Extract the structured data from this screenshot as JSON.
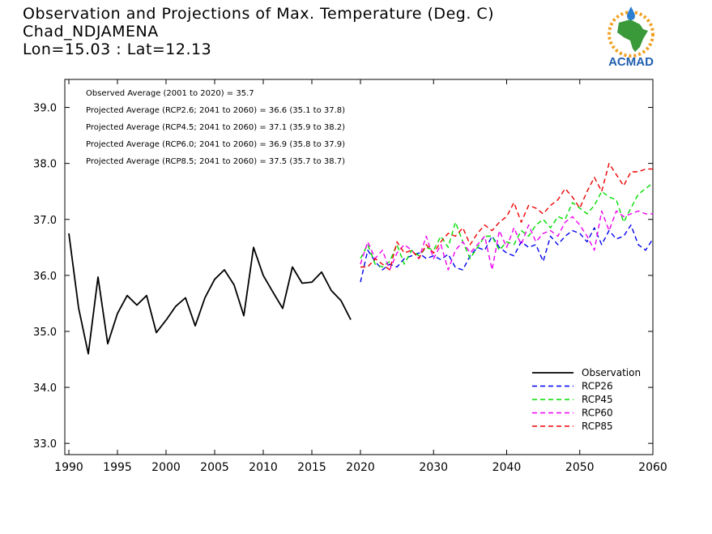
{
  "header": {
    "title_line1": "Observation and Projections of Max. Temperature (Deg. C)",
    "title_line2": "Chad_NDJAMENA",
    "title_line3": "Lon=15.03 : Lat=12.13"
  },
  "logo": {
    "text": "ACMAD",
    "colors": {
      "text": "#1f5fb0",
      "africa": "#3a9a3a",
      "sun": "#f0a020",
      "drop": "#2a7fd0"
    }
  },
  "chart_data": {
    "type": "line",
    "ylim": [
      32.8,
      39.5
    ],
    "yticks": [
      33.0,
      34.0,
      35.0,
      36.0,
      37.0,
      38.0,
      39.0
    ],
    "ytick_labels": [
      "33.0",
      "34.0",
      "35.0",
      "36.0",
      "37.0",
      "38.0",
      "39.0"
    ],
    "xticks_left": [
      1990,
      1995,
      2000,
      2005,
      2010,
      2015,
      2020
    ],
    "xticks_right": [
      2030,
      2040,
      2050,
      2060
    ],
    "annotations": [
      "Observed Average (2001 to 2020) = 35.7",
      "Projected Average (RCP2.6; 2041 to 2060) = 36.6 (35.1 to 37.8)",
      "Projected Average (RCP4.5; 2041 to 2060) = 37.1 (35.9 to 38.2)",
      "Projected Average (RCP6.0; 2041 to 2060) = 36.9 (35.8 to 37.9)",
      "Projected Average (RCP8.5; 2041 to 2060) = 37.5 (35.7 to 38.7)"
    ],
    "legend_position": "bottom-right",
    "series": [
      {
        "name": "Observation",
        "color": "#000000",
        "dashed": false,
        "x": [
          1990,
          1991,
          1992,
          1993,
          1994,
          1995,
          1996,
          1997,
          1998,
          1999,
          2000,
          2001,
          2002,
          2003,
          2004,
          2005,
          2006,
          2007,
          2008,
          2009,
          2010,
          2011,
          2012,
          2013,
          2014,
          2015,
          2016,
          2017,
          2018,
          2019,
          2020
        ],
        "values": [
          36.75,
          35.42,
          34.6,
          35.97,
          34.78,
          35.32,
          35.64,
          35.47,
          35.64,
          34.98,
          35.2,
          35.45,
          35.6,
          35.1,
          35.6,
          35.93,
          36.1,
          35.83,
          35.28,
          36.5,
          36.0,
          35.7,
          35.41,
          36.15,
          35.86,
          35.88,
          36.06,
          35.73,
          35.55,
          35.21,
          null
        ]
      },
      {
        "name": "RCP26",
        "color": "#0000ee",
        "dashed": true,
        "x": [
          2020,
          2021,
          2022,
          2023,
          2024,
          2025,
          2026,
          2027,
          2028,
          2029,
          2030,
          2031,
          2032,
          2033,
          2034,
          2035,
          2036,
          2037,
          2038,
          2039,
          2040,
          2041,
          2042,
          2043,
          2044,
          2045,
          2046,
          2047,
          2048,
          2049,
          2050,
          2051,
          2052,
          2053,
          2054,
          2055,
          2056,
          2057,
          2058,
          2059,
          2060
        ],
        "values": [
          35.88,
          36.45,
          36.25,
          36.1,
          36.2,
          36.15,
          36.3,
          36.35,
          36.4,
          36.3,
          36.35,
          36.28,
          36.38,
          36.14,
          36.1,
          36.35,
          36.5,
          36.45,
          36.7,
          36.5,
          36.4,
          36.35,
          36.6,
          36.5,
          36.55,
          36.25,
          36.7,
          36.55,
          36.7,
          36.8,
          36.75,
          36.6,
          36.85,
          36.55,
          36.8,
          36.65,
          36.7,
          36.9,
          36.55,
          36.45,
          36.65
        ]
      },
      {
        "name": "RCP45",
        "color": "#00dd00",
        "dashed": true,
        "x": [
          2020,
          2021,
          2022,
          2023,
          2024,
          2025,
          2026,
          2027,
          2028,
          2029,
          2030,
          2031,
          2032,
          2033,
          2034,
          2035,
          2036,
          2037,
          2038,
          2039,
          2040,
          2041,
          2042,
          2043,
          2044,
          2045,
          2046,
          2047,
          2048,
          2049,
          2050,
          2051,
          2052,
          2053,
          2054,
          2055,
          2056,
          2057,
          2058,
          2059,
          2060
        ],
        "values": [
          36.3,
          36.55,
          36.2,
          36.15,
          36.25,
          36.55,
          36.2,
          36.45,
          36.35,
          36.5,
          36.45,
          36.7,
          36.5,
          36.95,
          36.6,
          36.3,
          36.5,
          36.7,
          36.7,
          36.45,
          36.6,
          36.55,
          36.8,
          36.7,
          36.9,
          37.0,
          36.85,
          37.05,
          37.0,
          37.3,
          37.2,
          37.1,
          37.25,
          37.5,
          37.4,
          37.35,
          36.95,
          37.2,
          37.45,
          37.55,
          37.65
        ]
      },
      {
        "name": "RCP60",
        "color": "#ee00ee",
        "dashed": true,
        "x": [
          2020,
          2021,
          2022,
          2023,
          2024,
          2025,
          2026,
          2027,
          2028,
          2029,
          2030,
          2031,
          2032,
          2033,
          2034,
          2035,
          2036,
          2037,
          2038,
          2039,
          2040,
          2041,
          2042,
          2043,
          2044,
          2045,
          2046,
          2047,
          2048,
          2049,
          2050,
          2051,
          2052,
          2053,
          2054,
          2055,
          2056,
          2057,
          2058,
          2059,
          2060
        ],
        "values": [
          36.2,
          36.6,
          36.3,
          36.45,
          36.1,
          36.4,
          36.55,
          36.45,
          36.3,
          36.7,
          36.3,
          36.55,
          36.1,
          36.45,
          36.6,
          36.4,
          36.55,
          36.7,
          36.1,
          36.8,
          36.5,
          36.85,
          36.55,
          36.9,
          36.6,
          36.75,
          36.8,
          36.7,
          36.95,
          37.05,
          36.9,
          36.7,
          36.45,
          37.15,
          36.8,
          37.15,
          37.05,
          37.1,
          37.15,
          37.1,
          37.1
        ]
      },
      {
        "name": "RCP85",
        "color": "#ee0000",
        "dashed": true,
        "x": [
          2020,
          2021,
          2022,
          2023,
          2024,
          2025,
          2026,
          2027,
          2028,
          2029,
          2030,
          2031,
          2032,
          2033,
          2034,
          2035,
          2036,
          2037,
          2038,
          2039,
          2040,
          2041,
          2042,
          2043,
          2044,
          2045,
          2046,
          2047,
          2048,
          2049,
          2050,
          2051,
          2052,
          2053,
          2054,
          2055,
          2056,
          2057,
          2058,
          2059,
          2060
        ],
        "values": [
          36.15,
          36.15,
          36.3,
          36.2,
          36.1,
          36.6,
          36.4,
          36.45,
          36.3,
          36.55,
          36.4,
          36.6,
          36.75,
          36.7,
          36.85,
          36.55,
          36.75,
          36.9,
          36.8,
          36.95,
          37.05,
          37.3,
          36.95,
          37.25,
          37.2,
          37.1,
          37.25,
          37.35,
          37.55,
          37.4,
          37.2,
          37.5,
          37.75,
          37.5,
          38.0,
          37.8,
          37.6,
          37.85,
          37.85,
          37.9,
          37.9
        ]
      }
    ]
  }
}
